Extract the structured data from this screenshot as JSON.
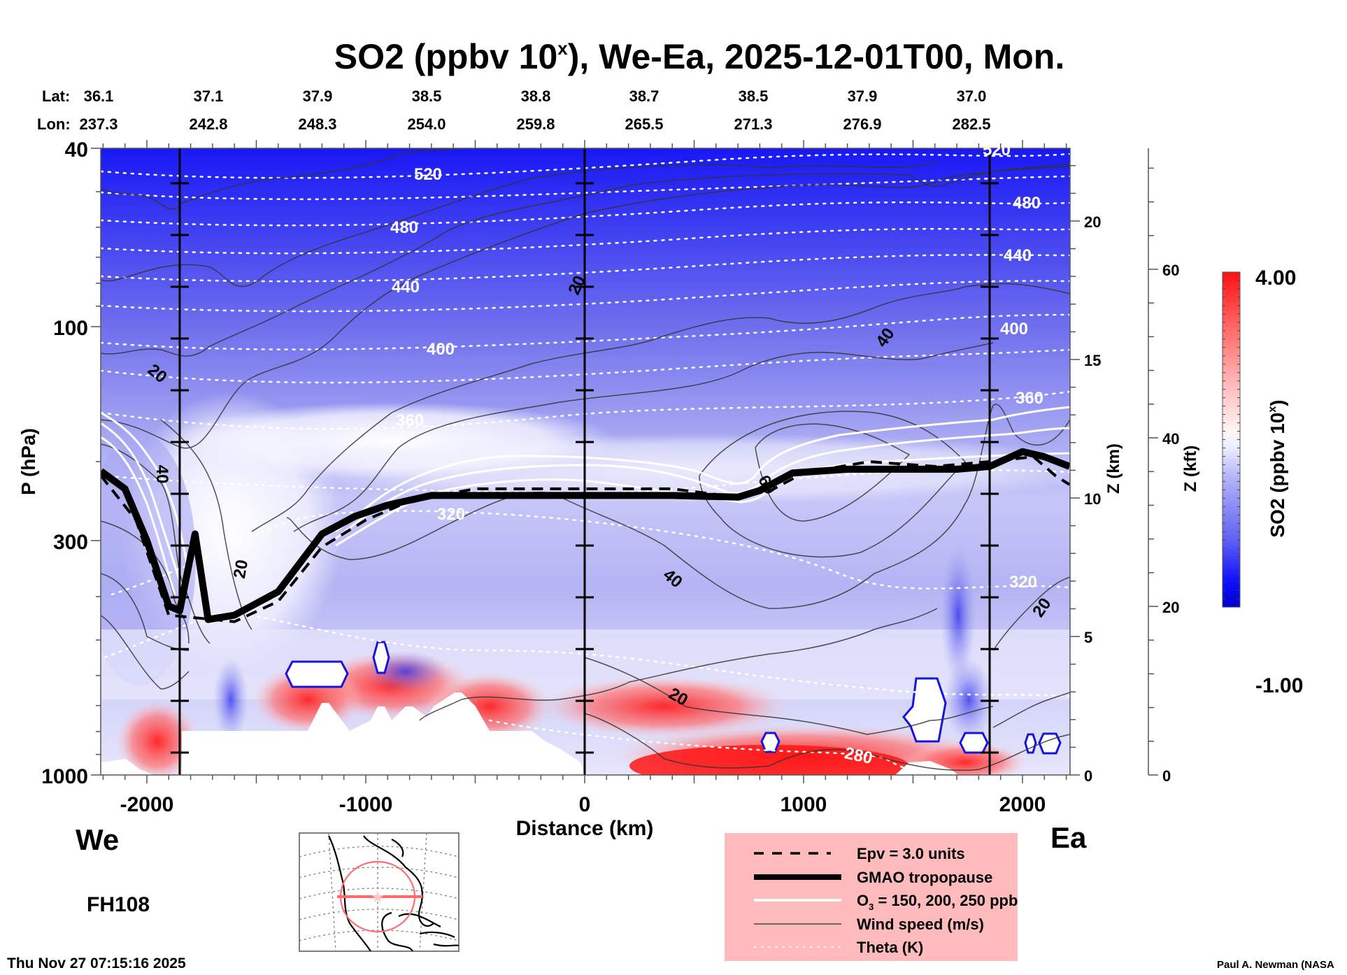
{
  "chart_data": {
    "type": "heatmap",
    "title": "SO2 (ppbv 10",
    "title_sup": "x",
    "title_rest": "), We-Ea, 2025-12-01T00, Mon.",
    "xlabel": "Distance (km)",
    "ylabel": "P (hPa)",
    "xlim": [
      -2210,
      2215
    ],
    "ylim_hpa": [
      1000,
      40
    ],
    "y_scale": "log",
    "x_ticks": [
      -2000,
      -1000,
      0,
      1000,
      2000
    ],
    "y_ticks": [
      40,
      100,
      300,
      1000
    ],
    "z_km_axis": {
      "label": "Z (km)",
      "ticks": [
        0,
        5,
        10,
        15,
        20
      ]
    },
    "z_kft_axis": {
      "label": "Z (kft)",
      "ticks": [
        0,
        20,
        40,
        60
      ]
    },
    "lat_label": "Lat:",
    "lon_label": "Lon:",
    "lat_values": [
      "36.1",
      "37.1",
      "37.9",
      "38.5",
      "38.8",
      "38.7",
      "38.5",
      "37.9",
      "37.0"
    ],
    "lon_values": [
      "237.3",
      "242.8",
      "248.3",
      "254.0",
      "259.8",
      "265.5",
      "271.3",
      "276.9",
      "282.5"
    ],
    "vertical_markers_km": [
      -1850,
      0,
      1850
    ],
    "colorbar": {
      "label": "SO2 (ppbv 10",
      "label_sup": "x",
      "label_end": ")",
      "min": -1.0,
      "max": 4.0,
      "min_label": "-1.00",
      "max_label": "4.00",
      "low_color": "#0000cc",
      "mid_color": "#ffffff",
      "high_color": "#ff0000",
      "levels": 40
    },
    "theta_contours_K": [
      {
        "value": 520,
        "label": "520"
      },
      {
        "value": 480,
        "label": "480"
      },
      {
        "value": 440,
        "label": "440"
      },
      {
        "value": 400,
        "label": "400"
      },
      {
        "value": 360,
        "label": "360"
      },
      {
        "value": 320,
        "label": "320"
      },
      {
        "value": 280,
        "label": "280"
      }
    ],
    "wind_speed_contour_labels": [
      "20",
      "20",
      "40",
      "40",
      "40",
      "60",
      "20",
      "20",
      "20",
      "20"
    ],
    "tropopause_hpa": [
      {
        "x": -2210,
        "p": 210
      },
      {
        "x": -2100,
        "p": 230
      },
      {
        "x": -2000,
        "p": 300
      },
      {
        "x": -1900,
        "p": 420
      },
      {
        "x": -1850,
        "p": 430
      },
      {
        "x": -1780,
        "p": 290
      },
      {
        "x": -1720,
        "p": 450
      },
      {
        "x": -1600,
        "p": 440
      },
      {
        "x": -1400,
        "p": 390
      },
      {
        "x": -1200,
        "p": 290
      },
      {
        "x": -1050,
        "p": 265
      },
      {
        "x": -900,
        "p": 250
      },
      {
        "x": -700,
        "p": 238
      },
      {
        "x": -400,
        "p": 238
      },
      {
        "x": 0,
        "p": 238
      },
      {
        "x": 400,
        "p": 238
      },
      {
        "x": 700,
        "p": 240
      },
      {
        "x": 800,
        "p": 232
      },
      {
        "x": 950,
        "p": 212
      },
      {
        "x": 1200,
        "p": 208
      },
      {
        "x": 1700,
        "p": 208
      },
      {
        "x": 1850,
        "p": 205
      },
      {
        "x": 2000,
        "p": 190
      },
      {
        "x": 2100,
        "p": 195
      },
      {
        "x": 2215,
        "p": 205
      }
    ],
    "epv_hpa": [
      {
        "x": -2210,
        "p": 215
      },
      {
        "x": -2050,
        "p": 270
      },
      {
        "x": -1900,
        "p": 440
      },
      {
        "x": -1800,
        "p": 445
      },
      {
        "x": -1600,
        "p": 455
      },
      {
        "x": -1400,
        "p": 410
      },
      {
        "x": -1200,
        "p": 310
      },
      {
        "x": -1000,
        "p": 270
      },
      {
        "x": -800,
        "p": 245
      },
      {
        "x": -500,
        "p": 230
      },
      {
        "x": 0,
        "p": 230
      },
      {
        "x": 400,
        "p": 230
      },
      {
        "x": 700,
        "p": 240
      },
      {
        "x": 850,
        "p": 232
      },
      {
        "x": 1000,
        "p": 212
      },
      {
        "x": 1300,
        "p": 200
      },
      {
        "x": 1600,
        "p": 205
      },
      {
        "x": 1850,
        "p": 200
      },
      {
        "x": 2050,
        "p": 195
      },
      {
        "x": 2150,
        "p": 215
      },
      {
        "x": 2215,
        "p": 225
      }
    ]
  },
  "footer": {
    "left_label": "We",
    "right_label": "Ea",
    "forecast_hour": "FH108",
    "timestamp": "Thu Nov 27 07:15:16 2025",
    "credit": "Paul A. Newman (NASA"
  },
  "legend": {
    "background": "#ffbbbb",
    "items": [
      {
        "style": "dashed",
        "label": "Epv = 3.0 units"
      },
      {
        "style": "thick",
        "label": "GMAO tropopause"
      },
      {
        "style": "white",
        "label": "O",
        "sub": "3",
        "label_rest": " = 150, 200, 250 ppb"
      },
      {
        "style": "thin",
        "label": "Wind speed (m/s)"
      },
      {
        "style": "dotted",
        "label": "Theta (K)"
      }
    ]
  },
  "inset_map": {
    "region": "North America",
    "track_color": "#ff7070",
    "center_marker_color": "#ffc8c8"
  }
}
